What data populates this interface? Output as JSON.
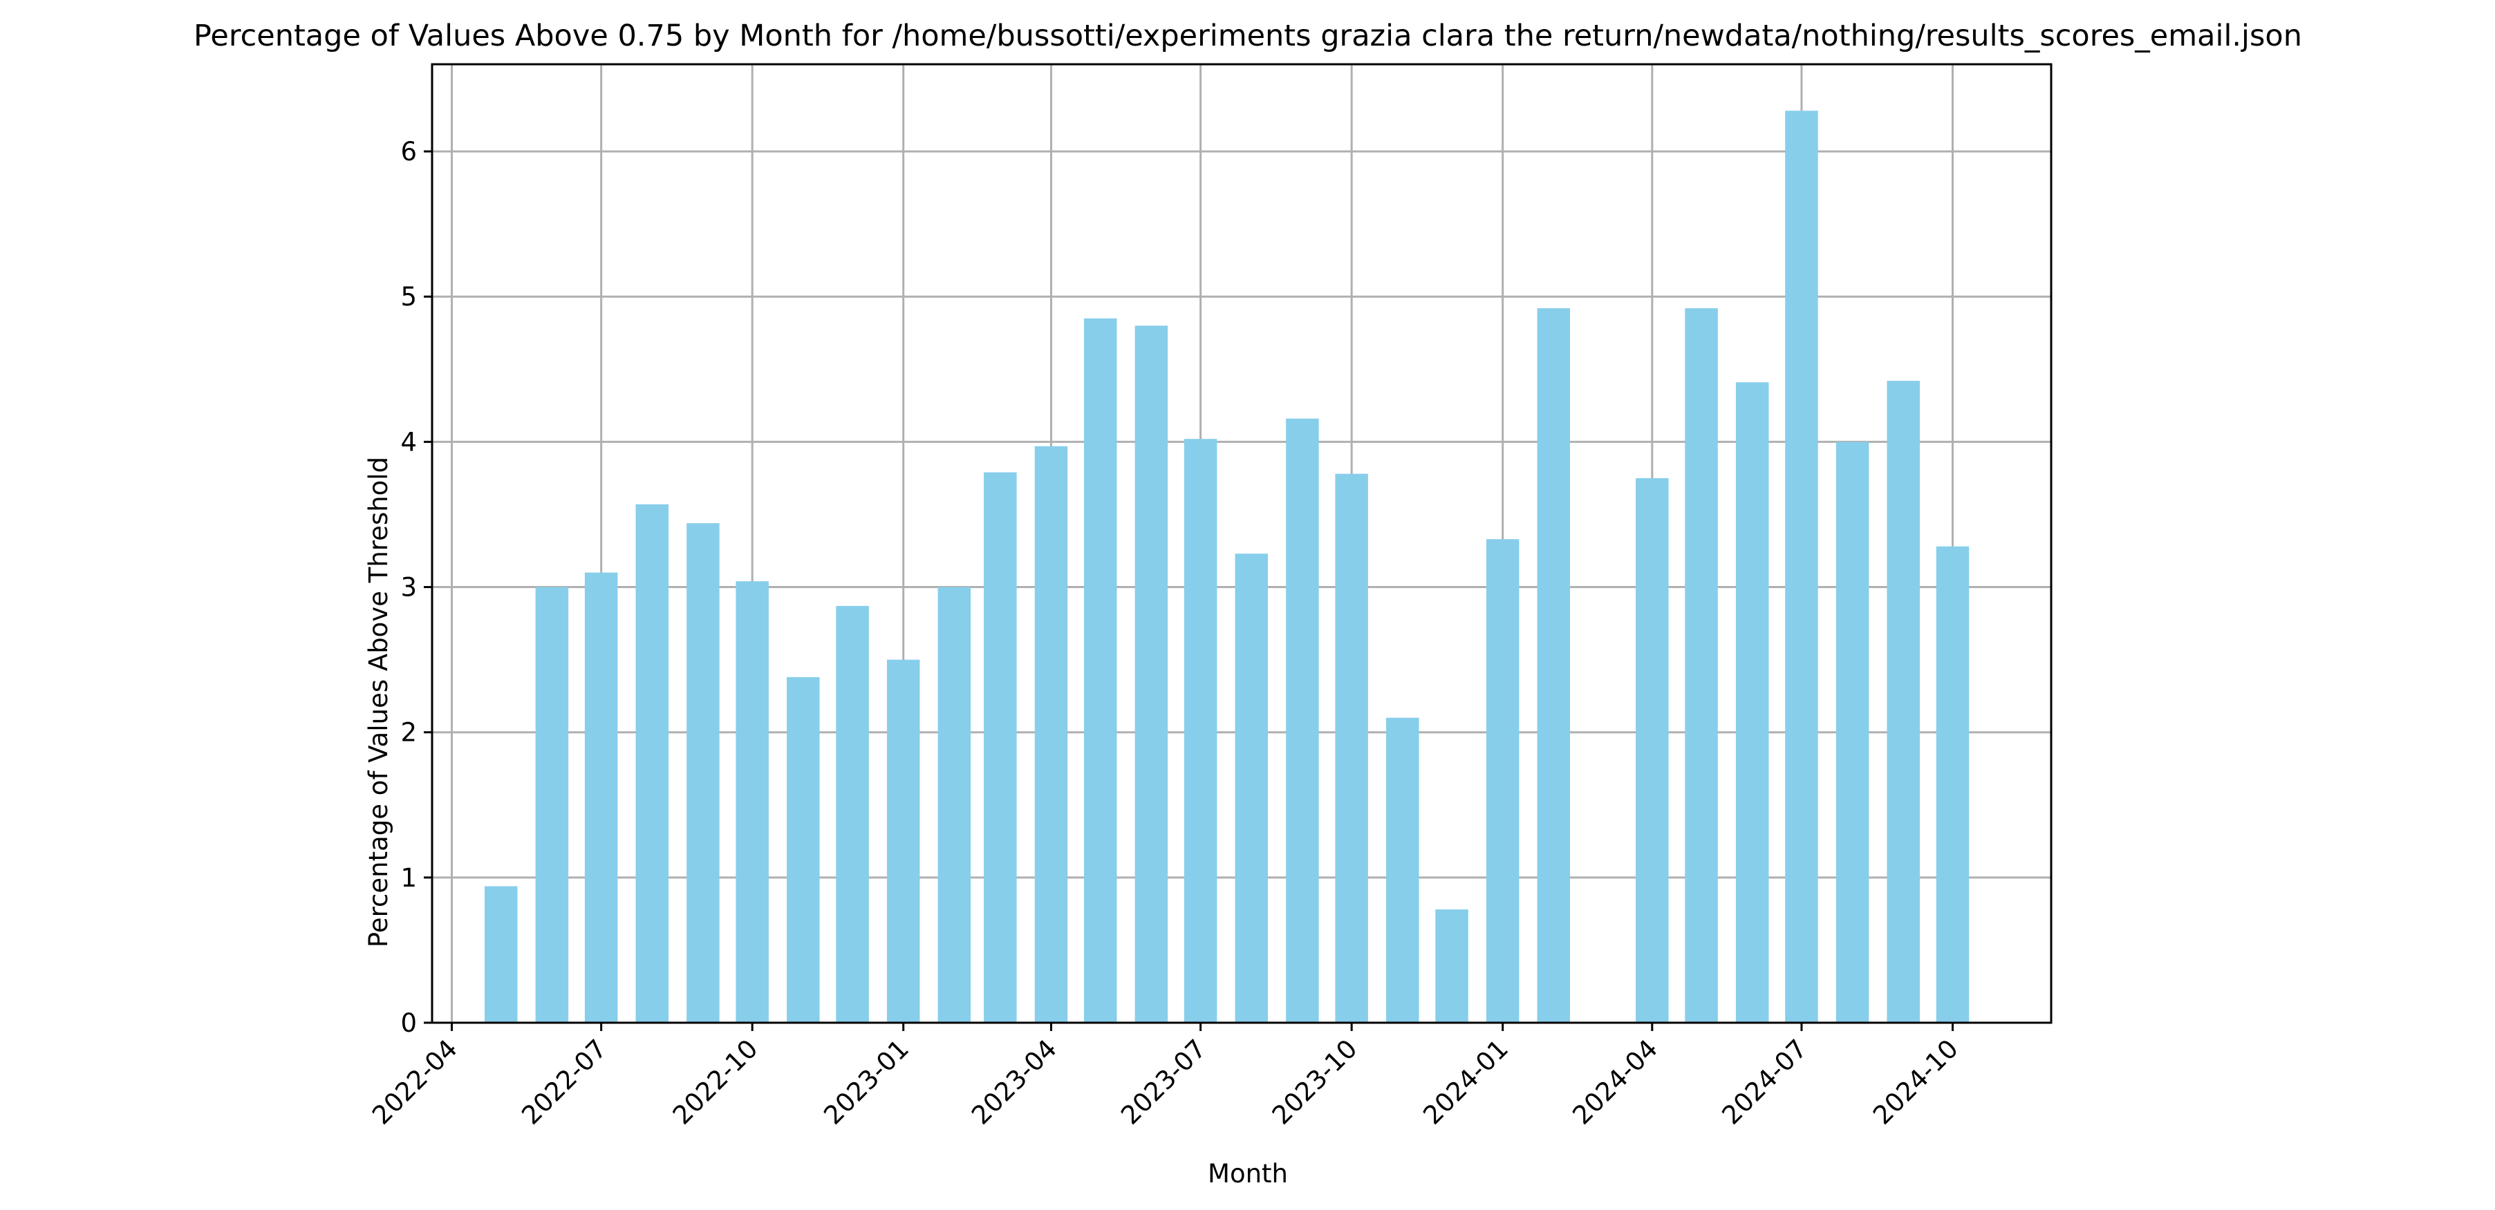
{
  "colors": {
    "bar": "#87ceeb",
    "grid": "#b0b0b0",
    "axis": "#000000",
    "background": "#ffffff"
  },
  "chart_data": {
    "type": "bar",
    "title": "Percentage of Values Above 0.75 by Month for /home/bussotti/experiments grazia clara the return/newdata/nothing/results_scores_email.json",
    "xlabel": "Month",
    "ylabel": "Percentage of Values Above Threshold",
    "grid": true,
    "x_tick_labels": [
      "2022-04",
      "2022-07",
      "2022-10",
      "2023-01",
      "2023-04",
      "2023-07",
      "2023-10",
      "2024-01",
      "2024-04",
      "2024-07",
      "2024-10"
    ],
    "y_ticks": [
      0,
      1,
      2,
      3,
      4,
      5,
      6
    ],
    "ylim": [
      0,
      6.6
    ],
    "xlim": [
      "2022-03-20",
      "2024-11-30"
    ],
    "categories": [
      "2022-05",
      "2022-06",
      "2022-07",
      "2022-08",
      "2022-09",
      "2022-10",
      "2022-11",
      "2022-12",
      "2023-01",
      "2023-02",
      "2023-03",
      "2023-04",
      "2023-05",
      "2023-06",
      "2023-07",
      "2023-08",
      "2023-09",
      "2023-10",
      "2023-11",
      "2023-12",
      "2024-01",
      "2024-02",
      "2024-04",
      "2024-05",
      "2024-06",
      "2024-07",
      "2024-08",
      "2024-09",
      "2024-10"
    ],
    "values": [
      0.94,
      3.0,
      3.1,
      3.57,
      3.44,
      3.04,
      2.38,
      2.87,
      2.5,
      3.0,
      3.79,
      3.97,
      4.85,
      4.8,
      4.02,
      3.23,
      4.16,
      3.78,
      2.1,
      0.78,
      3.33,
      4.92,
      3.75,
      4.92,
      4.41,
      6.28,
      4.0,
      4.42,
      3.28
    ]
  }
}
